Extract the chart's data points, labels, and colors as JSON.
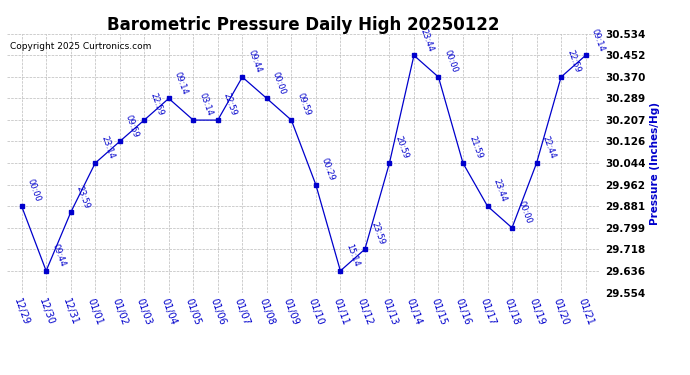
{
  "title": "Barometric Pressure Daily High 20250122",
  "copyright": "Copyright 2025 Curtronics.com",
  "ylabel": "Pressure (Inches/Hg)",
  "points": [
    {
      "x": 0,
      "date": "12/29",
      "time": "00:00",
      "value": 29.881
    },
    {
      "x": 1,
      "date": "12/30",
      "time": "09:44",
      "value": 29.636
    },
    {
      "x": 2,
      "date": "12/31",
      "time": "23:59",
      "value": 29.857
    },
    {
      "x": 3,
      "date": "01/01",
      "time": "23:14",
      "value": 30.044
    },
    {
      "x": 4,
      "date": "01/02",
      "time": "09:59",
      "value": 30.126
    },
    {
      "x": 5,
      "date": "01/03",
      "time": "22:59",
      "value": 30.207
    },
    {
      "x": 6,
      "date": "01/04",
      "time": "09:14",
      "value": 30.289
    },
    {
      "x": 7,
      "date": "01/05",
      "time": "03:14",
      "value": 30.207
    },
    {
      "x": 8,
      "date": "01/06",
      "time": "22:59",
      "value": 30.207
    },
    {
      "x": 9,
      "date": "01/07",
      "time": "09:44",
      "value": 30.37
    },
    {
      "x": 10,
      "date": "01/08",
      "time": "00:00",
      "value": 30.289
    },
    {
      "x": 11,
      "date": "01/09",
      "time": "09:59",
      "value": 30.207
    },
    {
      "x": 12,
      "date": "01/10",
      "time": "00:29",
      "value": 29.962
    },
    {
      "x": 13,
      "date": "01/11",
      "time": "15:14",
      "value": 29.636
    },
    {
      "x": 14,
      "date": "01/12",
      "time": "23:59",
      "value": 29.718
    },
    {
      "x": 15,
      "date": "01/13",
      "time": "20:59",
      "value": 30.044
    },
    {
      "x": 16,
      "date": "01/14",
      "time": "23:44",
      "value": 30.452
    },
    {
      "x": 17,
      "date": "01/15",
      "time": "00:00",
      "value": 30.37
    },
    {
      "x": 18,
      "date": "01/16",
      "time": "21:59",
      "value": 30.044
    },
    {
      "x": 19,
      "date": "01/17",
      "time": "23:44",
      "value": 29.881
    },
    {
      "x": 20,
      "date": "01/18",
      "time": "00:00",
      "value": 29.799
    },
    {
      "x": 21,
      "date": "01/19",
      "time": "22:44",
      "value": 30.044
    },
    {
      "x": 22,
      "date": "01/20",
      "time": "22:59",
      "value": 30.37
    },
    {
      "x": 23,
      "date": "01/21",
      "time": "09:14",
      "value": 30.452
    }
  ],
  "yticks": [
    29.554,
    29.636,
    29.718,
    29.799,
    29.881,
    29.962,
    30.044,
    30.126,
    30.207,
    30.289,
    30.37,
    30.452,
    30.534
  ],
  "ylim": [
    29.554,
    30.534
  ],
  "line_color": "#0000cc",
  "marker_color": "#0000cc",
  "grid_color": "#aaaaaa",
  "title_color": "#000000",
  "label_color": "#0000cc",
  "copyright_color": "#000000",
  "bg_color": "#ffffff",
  "title_fontsize": 12,
  "tick_fontsize": 7,
  "ytick_fontsize": 7.5,
  "annotation_fontsize": 6
}
